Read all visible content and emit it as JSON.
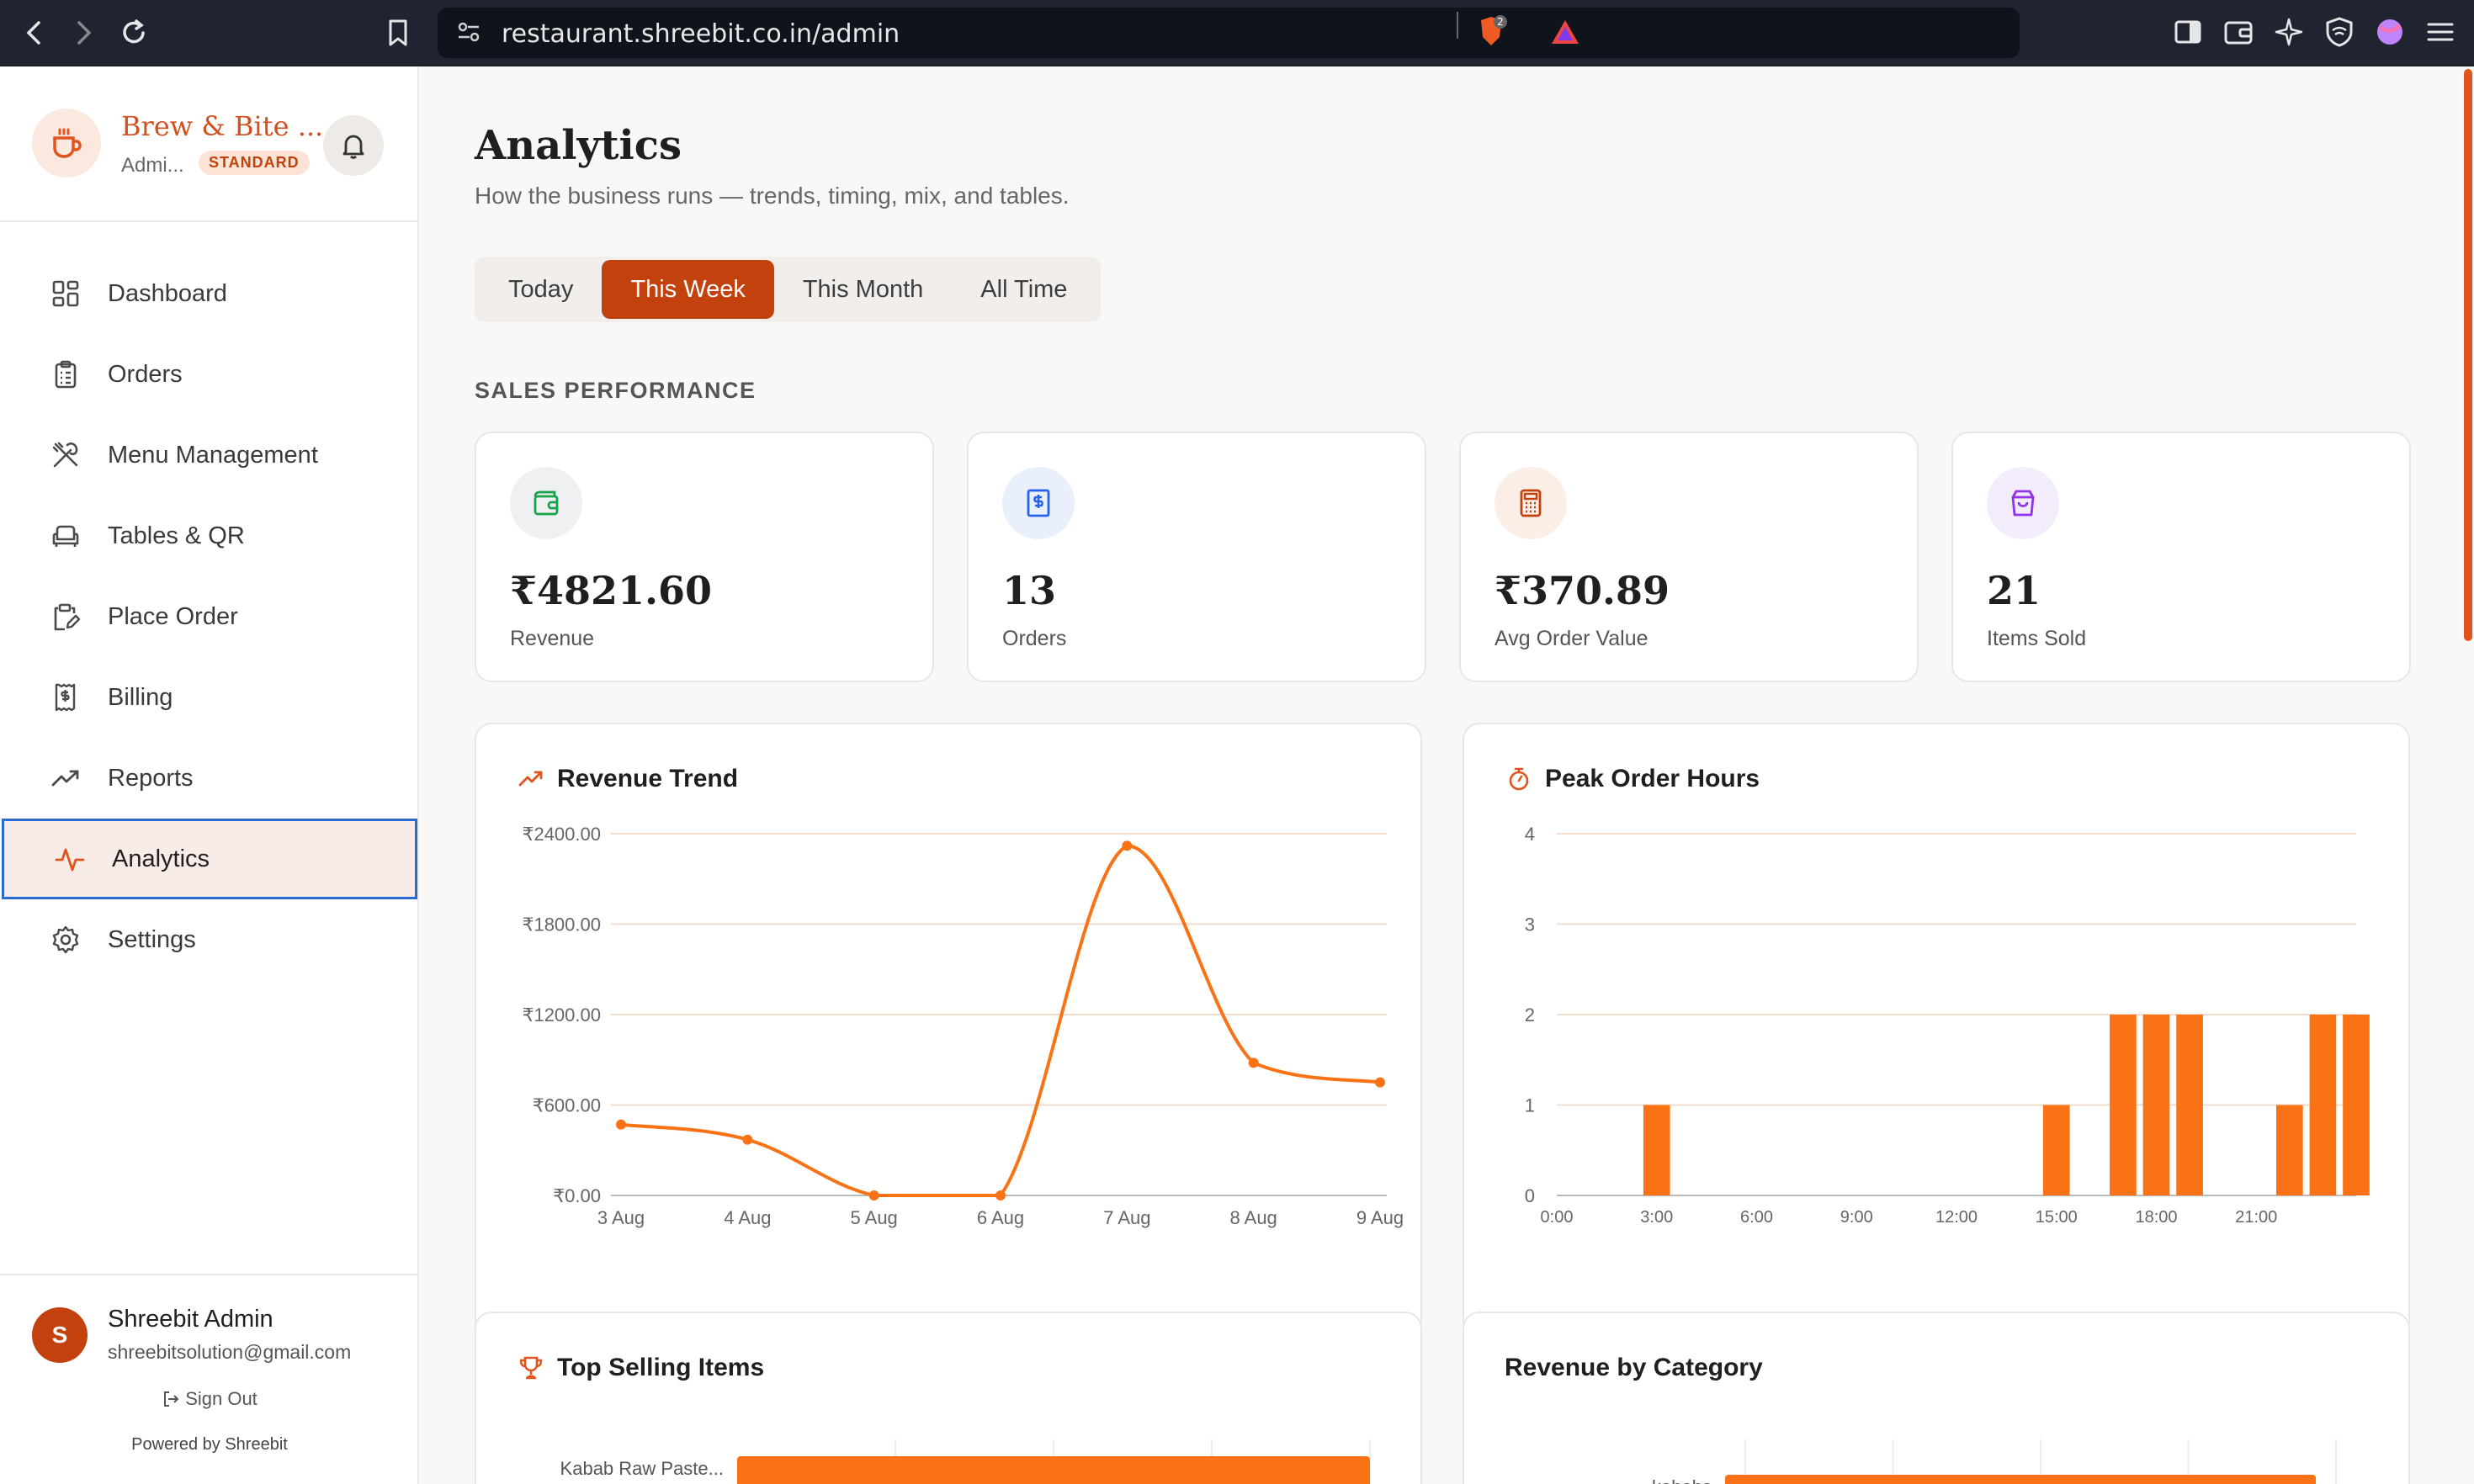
{
  "browser": {
    "url": "restaurant.shreebit.co.in/admin",
    "brave_badge": "2"
  },
  "brand": {
    "name": "Brew & Bite ...",
    "role": "Admi...",
    "plan_badge": "STANDARD",
    "accent": "#c2410c"
  },
  "sidebar": {
    "items": [
      {
        "label": "Dashboard",
        "icon": "grid-icon"
      },
      {
        "label": "Orders",
        "icon": "clipboard-icon"
      },
      {
        "label": "Menu Management",
        "icon": "utensils-icon"
      },
      {
        "label": "Tables & QR",
        "icon": "sofa-icon"
      },
      {
        "label": "Place Order",
        "icon": "clipboard-edit-icon"
      },
      {
        "label": "Billing",
        "icon": "receipt-icon"
      },
      {
        "label": "Reports",
        "icon": "trending-up-icon"
      },
      {
        "label": "Analytics",
        "icon": "activity-icon",
        "active": true
      },
      {
        "label": "Settings",
        "icon": "gear-icon"
      }
    ]
  },
  "user": {
    "initial": "S",
    "name": "Shreebit Admin",
    "email": "shreebitsolution@gmail.com",
    "signout_label": "Sign Out",
    "powered_by": "Powered by Shreebit"
  },
  "page": {
    "title": "Analytics",
    "subtitle": "How the business runs — trends, timing, mix, and tables.",
    "period_tabs": [
      "Today",
      "This Week",
      "This Month",
      "All Time"
    ],
    "active_period": "This Week",
    "section_label": "SALES PERFORMANCE"
  },
  "stats": [
    {
      "value": "₹4821.60",
      "label": "Revenue",
      "icon": "wallet-icon",
      "icon_color": "#16a34a",
      "bg": "#eef0f2"
    },
    {
      "value": "13",
      "label": "Orders",
      "icon": "dollar-receipt-icon",
      "icon_color": "#2563eb",
      "bg": "#eaf0fb"
    },
    {
      "value": "₹370.89",
      "label": "Avg Order Value",
      "icon": "calculator-icon",
      "icon_color": "#c2410c",
      "bg": "#fbeee6"
    },
    {
      "value": "21",
      "label": "Items Sold",
      "icon": "shopping-bag-icon",
      "icon_color": "#9333ea",
      "bg": "#f3ecfb"
    }
  ],
  "panels": {
    "revenue_trend": "Revenue Trend",
    "peak_hours": "Peak Order Hours",
    "top_items": "Top Selling Items",
    "revenue_by_category": "Revenue by Category"
  },
  "chart_data": [
    {
      "type": "line",
      "title": "Revenue Trend",
      "categories": [
        "3 Aug",
        "4 Aug",
        "5 Aug",
        "6 Aug",
        "7 Aug",
        "8 Aug",
        "9 Aug"
      ],
      "values": [
        470,
        370,
        0,
        0,
        2320,
        880,
        750
      ],
      "ylim": [
        0,
        2400
      ],
      "yticks": [
        "₹0.00",
        "₹600.00",
        "₹1200.00",
        "₹1800.00",
        "₹2400.00"
      ],
      "grid": true,
      "color": "#f97316"
    },
    {
      "type": "bar",
      "title": "Peak Order Hours",
      "x": [
        2,
        14,
        16,
        17,
        18,
        21,
        22,
        23
      ],
      "values": [
        1,
        1,
        2,
        2,
        2,
        1,
        2,
        2
      ],
      "xlim": [
        0,
        23
      ],
      "xticks": [
        "0:00",
        "3:00",
        "6:00",
        "9:00",
        "12:00",
        "15:00",
        "18:00",
        "21:00"
      ],
      "ylim": [
        0,
        4
      ],
      "yticks": [
        "0",
        "1",
        "2",
        "3",
        "4"
      ],
      "grid": true,
      "color": "#f97316"
    },
    {
      "type": "bar",
      "title": "Top Selling Items",
      "orientation": "horizontal",
      "categories": [
        "Kabab Raw Paste..."
      ],
      "values": [
        1
      ],
      "color": "#f97316"
    },
    {
      "type": "bar",
      "title": "Revenue by Category",
      "orientation": "horizontal",
      "categories": [
        "kababs"
      ],
      "values": [
        1
      ],
      "color": "#f97316"
    }
  ]
}
